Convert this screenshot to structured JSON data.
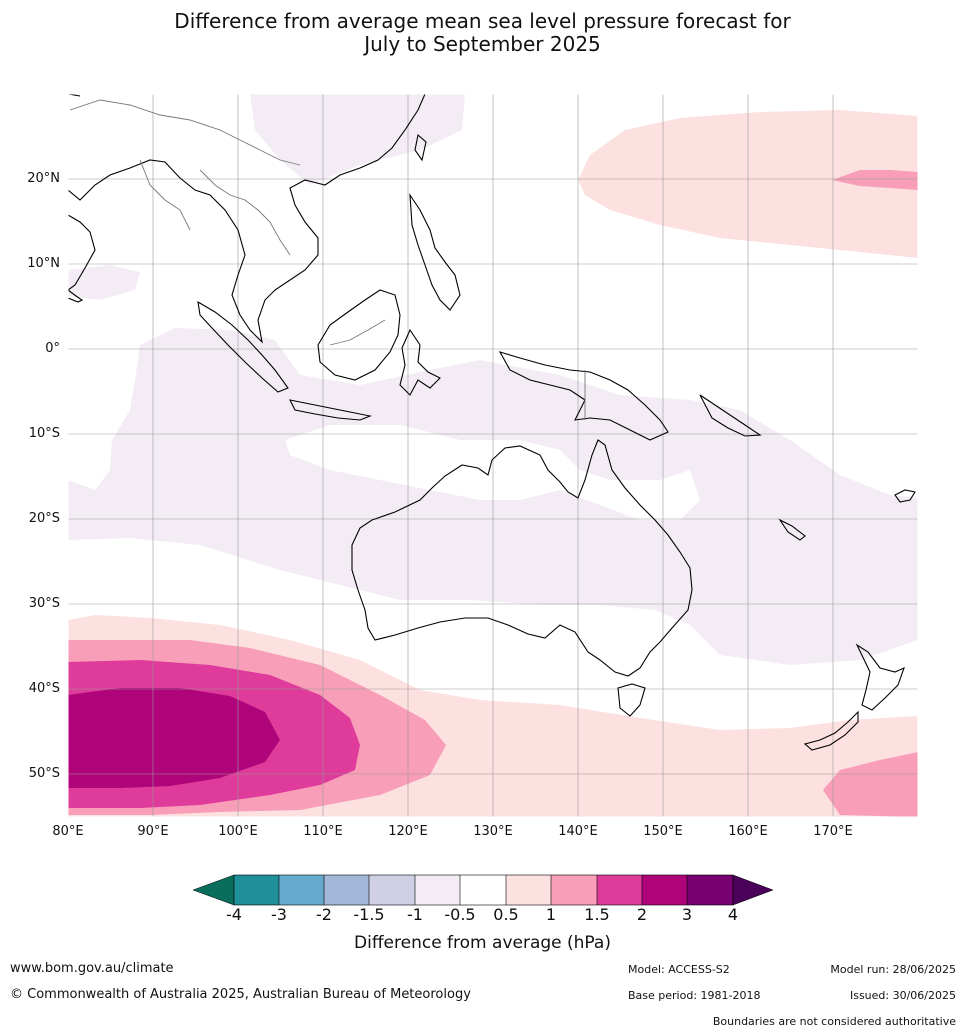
{
  "title": {
    "line1": "Difference from average mean sea level pressure forecast for",
    "line2": "July to September 2025"
  },
  "map": {
    "lat_labels": [
      "20°N",
      "10°N",
      "0°",
      "10°S",
      "20°S",
      "30°S",
      "40°S",
      "50°S"
    ],
    "lon_labels": [
      "80°E",
      "90°E",
      "100°E",
      "110°E",
      "120°E",
      "130°E",
      "140°E",
      "150°E",
      "160°E",
      "170°E"
    ],
    "colors": {
      "land_outline": "#000000",
      "border": "#777777",
      "grid": "#999999",
      "frame": "#ffffff"
    }
  },
  "colorbar": {
    "ticks": [
      "-4",
      "-3",
      "-2",
      "-1.5",
      "-1",
      "-0.5",
      "0.5",
      "1",
      "1.5",
      "2",
      "3",
      "4"
    ],
    "colors": [
      "#0a6e5c",
      "#1f8f99",
      "#66aad0",
      "#a3b8d9",
      "#cfd0e6",
      "#f3ecf5",
      "#ffffff",
      "#fde0e0",
      "#f89eb8",
      "#de3b9a",
      "#b0047a",
      "#770070",
      "#4b005a"
    ],
    "label": "Difference from average (hPa)"
  },
  "footer": {
    "website": "www.bom.gov.au/climate",
    "copyright": "© Commonwealth of Australia 2025, Australian Bureau of Meteorology",
    "model": "Model: ACCESS-S2",
    "base_period": "Base period: 1981-2018",
    "model_run": "Model run: 28/06/2025",
    "issued": "Issued: 30/06/2025",
    "disclaimer": "Boundaries are not considered authoritative"
  }
}
